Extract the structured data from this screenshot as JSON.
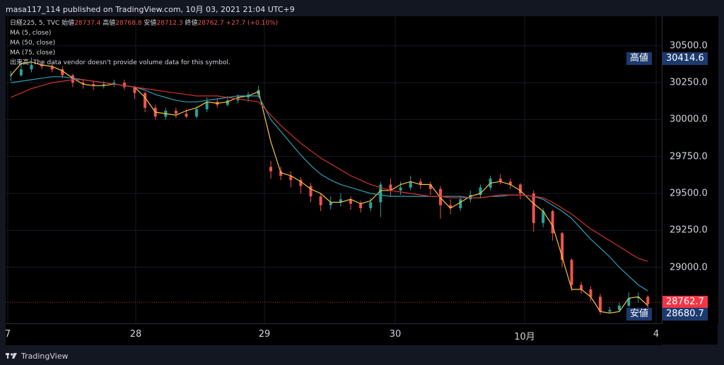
{
  "header": {
    "publisher_line": "masa117_114 published on TradingView.com, 10月 03, 2021 21:04 UTC+9"
  },
  "legend": {
    "symbol": "日経225, 5, TVC",
    "open_label": "始値",
    "open_value": "28737.4",
    "high_label": "高値",
    "high_value": "28768.8",
    "low_label": "安値",
    "low_value": "28712.3",
    "close_label": "終値",
    "close_value": "28762.7 +27.7 (+0.10%)",
    "ma5": "MA (5, close)",
    "ma50": "MA (50, close)",
    "ma75": "MA (75, close)",
    "volume_note": "出来高: The data vendor doesn't provide volume data for this symbol."
  },
  "badges": {
    "high_label": "高値",
    "high_value": "30414.6",
    "low_label": "安値",
    "low_value": "28680.7",
    "last_value": "28762.7"
  },
  "footer": {
    "brand": "TradingView"
  },
  "colors": {
    "up": "#26a69a",
    "down": "#ef5350",
    "ma5": "#f5c342",
    "ma50": "#2b9fb5",
    "ma75": "#d2322d",
    "badge_blue": "#1c3a6e",
    "last_red": "#f23645"
  },
  "chart_data": {
    "type": "line",
    "ylim": [
      28620,
      30700
    ],
    "y_ticks": [
      "30500.0",
      "30250.0",
      "30000.0",
      "29750.0",
      "29500.0",
      "29250.0",
      "29000.0"
    ],
    "x_ticks": [
      "7",
      "28",
      "29",
      "30",
      "10月",
      "4"
    ],
    "last_price": 28762.7,
    "session_high": 30414.6,
    "session_low": 28680.7,
    "series": [
      {
        "name": "MA (5, close)",
        "values": [
          30300,
          30380,
          30390,
          30370,
          30360,
          30330,
          30280,
          30240,
          30230,
          30230,
          30240,
          30230,
          30220,
          30150,
          30050,
          30040,
          30030,
          30060,
          30080,
          30120,
          30110,
          30120,
          30150,
          30160,
          30190,
          29850,
          29640,
          29620,
          29580,
          29530,
          29500,
          29440,
          29440,
          29460,
          29430,
          29450,
          29520,
          29520,
          29560,
          29580,
          29560,
          29560,
          29470,
          29400,
          29440,
          29480,
          29500,
          29570,
          29580,
          29560,
          29520,
          29430,
          29380,
          29280,
          29070,
          28850,
          28850,
          28800,
          28700,
          28690,
          28700,
          28790,
          28800,
          28740
        ]
      },
      {
        "name": "MA (50, close)",
        "values": [
          30250,
          30260,
          30270,
          30280,
          30290,
          30290,
          30280,
          30270,
          30260,
          30250,
          30240,
          30230,
          30220,
          30200,
          30170,
          30150,
          30130,
          30120,
          30120,
          30130,
          30140,
          30150,
          30160,
          30160,
          30160,
          30000,
          29920,
          29840,
          29760,
          29690,
          29630,
          29590,
          29560,
          29540,
          29520,
          29500,
          29490,
          29480,
          29480,
          29480,
          29480,
          29480,
          29480,
          29480,
          29480,
          29470,
          29470,
          29480,
          29480,
          29490,
          29490,
          29480,
          29460,
          29420,
          29380,
          29330,
          29260,
          29190,
          29130,
          29070,
          29000,
          28940,
          28880,
          28840
        ]
      },
      {
        "name": "MA (75, close)",
        "values": [
          30150,
          30180,
          30210,
          30230,
          30250,
          30260,
          30270,
          30270,
          30260,
          30250,
          30240,
          30230,
          30220,
          30210,
          30200,
          30190,
          30180,
          30170,
          30160,
          30160,
          30160,
          30150,
          30140,
          30130,
          30120,
          30030,
          29960,
          29900,
          29840,
          29790,
          29740,
          29700,
          29660,
          29620,
          29590,
          29560,
          29540,
          29520,
          29510,
          29500,
          29490,
          29480,
          29480,
          29470,
          29470,
          29470,
          29470,
          29480,
          29490,
          29490,
          29490,
          29480,
          29470,
          29440,
          29400,
          29360,
          29310,
          29260,
          29220,
          29180,
          29140,
          29100,
          29060,
          29040
        ]
      }
    ],
    "candles": [
      [
        30300,
        30300,
        30330,
        30260
      ],
      [
        30300,
        30340,
        30400,
        30290
      ],
      [
        30340,
        30370,
        30420,
        30320
      ],
      [
        30370,
        30360,
        30400,
        30340
      ],
      [
        30360,
        30340,
        30380,
        30320
      ],
      [
        30340,
        30300,
        30360,
        30280
      ],
      [
        30300,
        30250,
        30310,
        30220
      ],
      [
        30250,
        30240,
        30270,
        30210
      ],
      [
        30240,
        30230,
        30260,
        30200
      ],
      [
        30230,
        30240,
        30260,
        30210
      ],
      [
        30240,
        30250,
        30270,
        30220
      ],
      [
        30250,
        30220,
        30270,
        30200
      ],
      [
        30220,
        30180,
        30230,
        30140
      ],
      [
        30180,
        30080,
        30190,
        30050
      ],
      [
        30080,
        30020,
        30100,
        30000
      ],
      [
        30020,
        30060,
        30080,
        30000
      ],
      [
        30060,
        30040,
        30080,
        30010
      ],
      [
        30040,
        30020,
        30070,
        30010
      ],
      [
        30020,
        30070,
        30090,
        30010
      ],
      [
        30070,
        30120,
        30150,
        30050
      ],
      [
        30120,
        30100,
        30140,
        30080
      ],
      [
        30100,
        30130,
        30160,
        30090
      ],
      [
        30130,
        30150,
        30170,
        30110
      ],
      [
        30150,
        30170,
        30190,
        30120
      ],
      [
        30170,
        30200,
        30230,
        30150
      ],
      [
        29680,
        29650,
        29720,
        29600
      ],
      [
        29650,
        29620,
        29680,
        29590
      ],
      [
        29620,
        29590,
        29650,
        29540
      ],
      [
        29590,
        29550,
        29610,
        29500
      ],
      [
        29550,
        29480,
        29570,
        29440
      ],
      [
        29480,
        29420,
        29500,
        29380
      ],
      [
        29420,
        29440,
        29480,
        29390
      ],
      [
        29440,
        29460,
        29500,
        29410
      ],
      [
        29460,
        29430,
        29480,
        29390
      ],
      [
        29430,
        29400,
        29450,
        29370
      ],
      [
        29400,
        29440,
        29470,
        29380
      ],
      [
        29440,
        29560,
        29580,
        29340
      ],
      [
        29560,
        29520,
        29600,
        29480
      ],
      [
        29520,
        29540,
        29580,
        29490
      ],
      [
        29540,
        29580,
        29620,
        29520
      ],
      [
        29580,
        29560,
        29600,
        29530
      ],
      [
        29560,
        29530,
        29580,
        29490
      ],
      [
        29530,
        29420,
        29550,
        29330
      ],
      [
        29420,
        29400,
        29460,
        29360
      ],
      [
        29400,
        29460,
        29480,
        29380
      ],
      [
        29460,
        29490,
        29520,
        29440
      ],
      [
        29490,
        29540,
        29560,
        29470
      ],
      [
        29540,
        29600,
        29620,
        29520
      ],
      [
        29600,
        29580,
        29630,
        29560
      ],
      [
        29580,
        29560,
        29600,
        29530
      ],
      [
        29560,
        29500,
        29570,
        29460
      ],
      [
        29500,
        29300,
        29520,
        29240
      ],
      [
        29300,
        29380,
        29400,
        29270
      ],
      [
        29380,
        29230,
        29390,
        29180
      ],
      [
        29230,
        29050,
        29240,
        29000
      ],
      [
        29050,
        28880,
        29060,
        28840
      ],
      [
        28880,
        28850,
        28900,
        28820
      ],
      [
        28850,
        28800,
        28870,
        28770
      ],
      [
        28800,
        28700,
        28820,
        28680
      ],
      [
        28700,
        28710,
        28730,
        28690
      ],
      [
        28710,
        28740,
        28760,
        28700
      ],
      [
        28740,
        28790,
        28830,
        28730
      ],
      [
        28790,
        28800,
        28830,
        28760
      ],
      [
        28800,
        28750,
        28810,
        28720
      ]
    ]
  }
}
